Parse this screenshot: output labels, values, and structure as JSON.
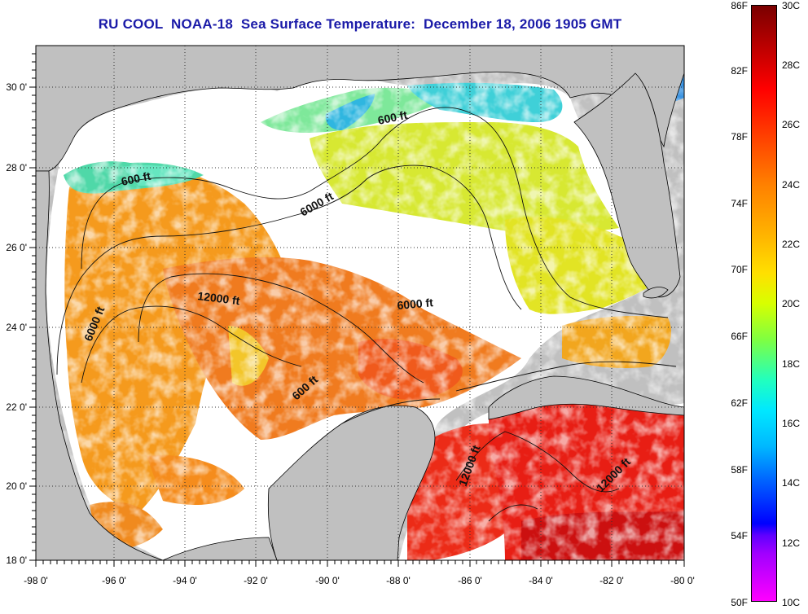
{
  "title": "RU COOL  NOAA-18  Sea Surface Temperature:  December 18, 2006 1905 GMT",
  "map": {
    "lon_labels": [
      "-98 0'",
      "-96 0'",
      "-94 0'",
      "-92 0'",
      "-90 0'",
      "-88 0'",
      "-86 0'",
      "-84 0'",
      "-82 0'",
      "-80 0'"
    ],
    "lat_labels": [
      "30 0'",
      "28 0'",
      "26 0'",
      "24 0'",
      "22 0'",
      "20 0'",
      "18 0'"
    ],
    "contour_labels": [
      "600 ft",
      "600 ft",
      "6000 ft",
      "6000 ft",
      "6000 ft",
      "12000 ft",
      "600 ft",
      "12000 ft",
      "12000 ft"
    ],
    "colors": {
      "land": "#c0c0c0",
      "cloud": "#ffffff",
      "frame": "#000000",
      "title": "#1a1aa8"
    }
  },
  "colorbar": {
    "fahrenheit_labels": [
      "86F",
      "82F",
      "78F",
      "74F",
      "70F",
      "66F",
      "62F",
      "58F",
      "54F",
      "50F"
    ],
    "celsius_labels": [
      "30C",
      "28C",
      "26C",
      "24C",
      "22C",
      "20C",
      "18C",
      "16C",
      "14C",
      "12C",
      "10C"
    ]
  }
}
